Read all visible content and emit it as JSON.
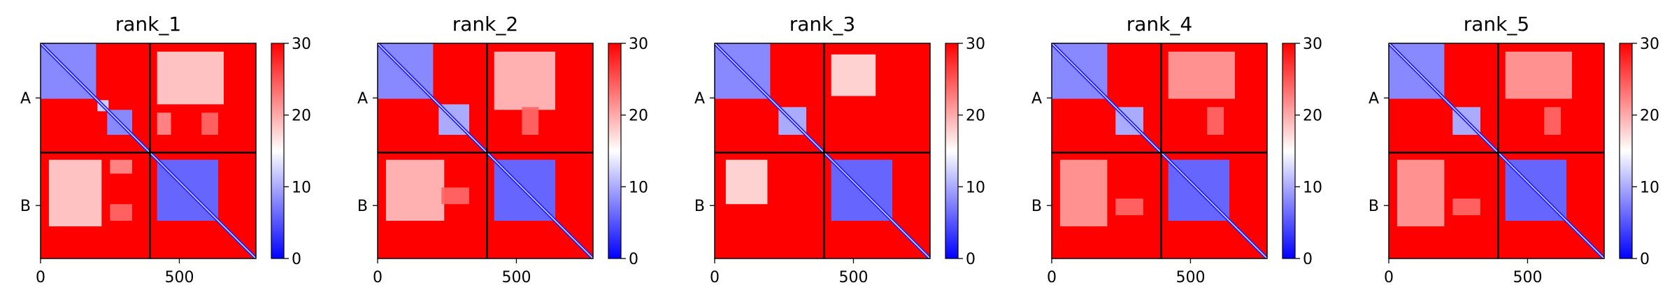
{
  "chart_data": [
    {
      "type": "heatmap",
      "title": "rank_1",
      "x_ticks": [
        0,
        500
      ],
      "xlim": [
        0,
        776
      ],
      "chains": [
        "A",
        "B"
      ],
      "chain_boundary": 394,
      "colorbar": {
        "min": 0,
        "max": 30,
        "ticks": [
          0,
          10,
          20,
          30
        ],
        "colors": [
          "#0000ff",
          "#ffffff",
          "#ff0000"
        ]
      },
      "blocks": {
        "A_A": [
          [
            0,
            200,
            8
          ],
          [
            205,
            245,
            12
          ],
          [
            240,
            330,
            8
          ]
        ],
        "B_B": [
          [
            420,
            640,
            6
          ]
        ],
        "A_B": [
          [
            30,
            220,
            420,
            660,
            18
          ],
          [
            250,
            330,
            420,
            470,
            22
          ],
          [
            250,
            330,
            580,
            640,
            24
          ]
        ]
      }
    },
    {
      "type": "heatmap",
      "title": "rank_2",
      "x_ticks": [
        0,
        500
      ],
      "xlim": [
        0,
        776
      ],
      "chains": [
        "A",
        "B"
      ],
      "chain_boundary": 394,
      "colorbar": {
        "min": 0,
        "max": 30,
        "ticks": [
          0,
          10,
          20,
          30
        ],
        "colors": [
          "#0000ff",
          "#ffffff",
          "#ff0000"
        ]
      },
      "blocks": {
        "A_A": [
          [
            0,
            200,
            8
          ],
          [
            220,
            330,
            10
          ]
        ],
        "B_B": [
          [
            420,
            640,
            6
          ]
        ],
        "A_B": [
          [
            30,
            240,
            420,
            640,
            19
          ],
          [
            230,
            330,
            520,
            580,
            24
          ]
        ]
      }
    },
    {
      "type": "heatmap",
      "title": "rank_3",
      "x_ticks": [
        0,
        500
      ],
      "xlim": [
        0,
        776
      ],
      "chains": [
        "A",
        "B"
      ],
      "chain_boundary": 394,
      "colorbar": {
        "min": 0,
        "max": 30,
        "ticks": [
          0,
          10,
          20,
          30
        ],
        "colors": [
          "#0000ff",
          "#ffffff",
          "#ff0000"
        ]
      },
      "blocks": {
        "A_A": [
          [
            0,
            200,
            8
          ],
          [
            230,
            330,
            10
          ]
        ],
        "B_B": [
          [
            420,
            640,
            6
          ]
        ],
        "A_B": [
          [
            40,
            190,
            420,
            580,
            17
          ]
        ]
      }
    },
    {
      "type": "heatmap",
      "title": "rank_4",
      "x_ticks": [
        0,
        500
      ],
      "xlim": [
        0,
        776
      ],
      "chains": [
        "A",
        "B"
      ],
      "chain_boundary": 394,
      "colorbar": {
        "min": 0,
        "max": 30,
        "ticks": [
          0,
          10,
          20,
          30
        ],
        "colors": [
          "#0000ff",
          "#ffffff",
          "#ff0000"
        ]
      },
      "blocks": {
        "A_A": [
          [
            0,
            200,
            8
          ],
          [
            230,
            330,
            10
          ]
        ],
        "B_B": [
          [
            420,
            640,
            6
          ]
        ],
        "A_B": [
          [
            30,
            200,
            420,
            660,
            21
          ],
          [
            230,
            330,
            560,
            620,
            24
          ]
        ]
      }
    },
    {
      "type": "heatmap",
      "title": "rank_5",
      "x_ticks": [
        0,
        500
      ],
      "xlim": [
        0,
        776
      ],
      "chains": [
        "A",
        "B"
      ],
      "chain_boundary": 394,
      "colorbar": {
        "min": 0,
        "max": 30,
        "ticks": [
          0,
          10,
          20,
          30
        ],
        "colors": [
          "#0000ff",
          "#ffffff",
          "#ff0000"
        ]
      },
      "blocks": {
        "A_A": [
          [
            0,
            200,
            8
          ],
          [
            230,
            330,
            10
          ]
        ],
        "B_B": [
          [
            420,
            640,
            6
          ]
        ],
        "A_B": [
          [
            30,
            200,
            420,
            660,
            21
          ],
          [
            230,
            330,
            560,
            620,
            24
          ]
        ]
      }
    }
  ]
}
